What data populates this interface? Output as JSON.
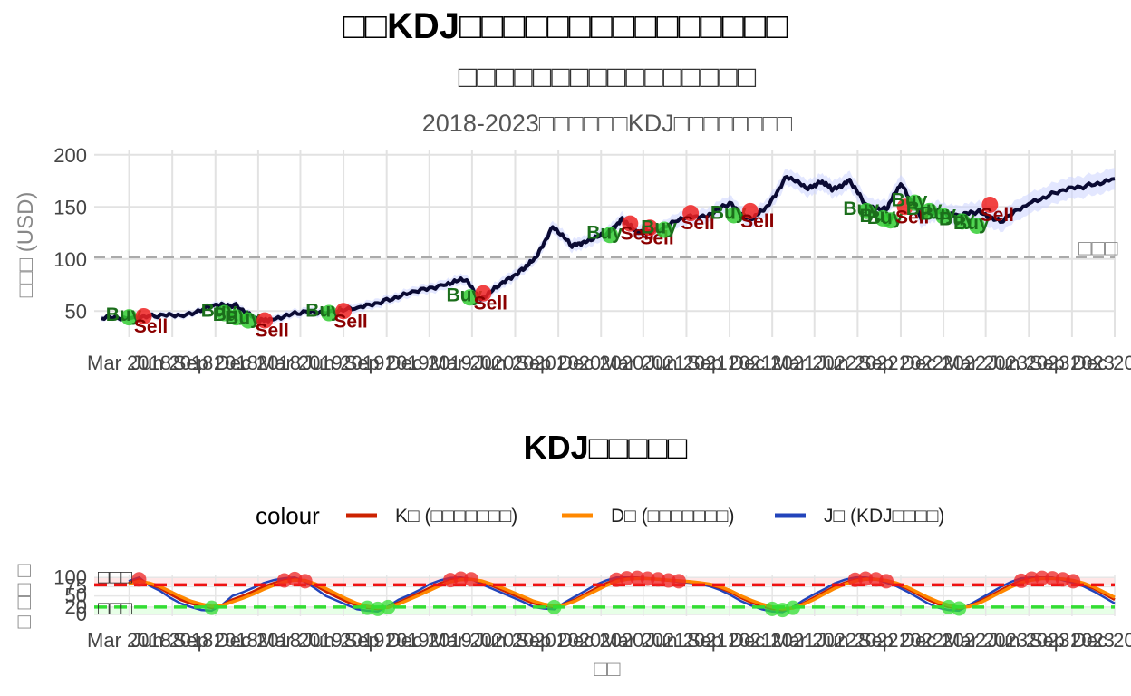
{
  "titles": {
    "main": "□□KDJ□□□□□□□□□□□□□□□",
    "subtitle": "□□□□□□□□□□□□□□□□",
    "caption": "2018-2023□□□□□□KDJ□□□□□□□□"
  },
  "price_panel": {
    "ylabel": "□□□ (USD)",
    "ref_line_label": "□□□",
    "colors": {
      "price": "#0a0a33",
      "band": "#ccd4ff",
      "ref": "#aaaaaa",
      "buy": "#1b6e1b",
      "sell": "#8b0000",
      "buy_point": "#33cc33",
      "sell_point": "#ee2222"
    }
  },
  "kdj_panel": {
    "title": "KDJ□□□□□",
    "xlabel": "□□",
    "ylabel": "□ □□ □",
    "overbought_label": "□□□",
    "oversold_label": "□□□",
    "legend": {
      "title": "colour",
      "items": [
        {
          "label": "K□ (□□□□□□□)",
          "color": "#cc2200"
        },
        {
          "label": "D□ (□□□□□□□)",
          "color": "#ff8800"
        },
        {
          "label": "J□ (KDJ□□□□)",
          "color": "#2244bb"
        }
      ]
    }
  },
  "chart_data": [
    {
      "type": "line",
      "panel": "price",
      "x_tick_labels": [
        "Mar 2018",
        "Jun 2018",
        "Sep 2018",
        "Dec 2018",
        "Mar 2019",
        "Jun 2019",
        "Sep 2019",
        "Dec 2019",
        "Mar 2020",
        "Jun 2020",
        "Sep 2020",
        "Dec 2020",
        "Mar 2021",
        "Jun 2021",
        "Sep 2021",
        "Dec 2021",
        "Mar 2022",
        "Jun 2022",
        "Sep 2022",
        "Dec 2022",
        "Mar 2023",
        "Jun 2023",
        "Sep 2023",
        "Dec 2023"
      ],
      "y_ticks": [
        50,
        100,
        150,
        200
      ],
      "ylim": [
        25,
        205
      ],
      "reference_line": 102,
      "series": [
        {
          "x": [
            "2018-01-01",
            "2018-03-01",
            "2018-05-01",
            "2018-07-01",
            "2018-09-01",
            "2018-10-15",
            "2018-12-01",
            "2019-01-01",
            "2019-03-01",
            "2019-05-01",
            "2019-07-01",
            "2019-09-01",
            "2019-11-01",
            "2020-01-01",
            "2020-02-15",
            "2020-03-20",
            "2020-05-01",
            "2020-06-15",
            "2020-07-15",
            "2020-08-20",
            "2020-09-30",
            "2020-11-01",
            "2020-12-15",
            "2021-01-15",
            "2021-02-15",
            "2021-04-01",
            "2021-06-01",
            "2021-07-15",
            "2021-09-01",
            "2021-10-15",
            "2021-11-20",
            "2022-01-01",
            "2022-02-15",
            "2022-03-15",
            "2022-04-10",
            "2022-05-15",
            "2022-06-20",
            "2022-08-01",
            "2022-09-01",
            "2022-10-15",
            "2022-11-15",
            "2023-01-01",
            "2023-02-15",
            "2023-04-01",
            "2023-06-01",
            "2023-08-01",
            "2023-10-01",
            "2023-12-01"
          ],
          "values": [
            43,
            44,
            45,
            47,
            55,
            56,
            40,
            43,
            48,
            50,
            52,
            61,
            68,
            76,
            80,
            62,
            75,
            90,
            100,
            132,
            112,
            118,
            124,
            139,
            125,
            128,
            140,
            142,
            153,
            138,
            149,
            180,
            167,
            175,
            166,
            176,
            150,
            148,
            172,
            140,
            146,
            142,
            145,
            136,
            153,
            165,
            170,
            177
          ]
        }
      ],
      "signals": [
        {
          "type": "Buy",
          "x": "2018-03-01",
          "y": 44
        },
        {
          "type": "Sell",
          "x": "2018-04-01",
          "y": 45
        },
        {
          "type": "Buy",
          "x": "2018-09-20",
          "y": 48
        },
        {
          "type": "Buy",
          "x": "2018-10-15",
          "y": 44
        },
        {
          "type": "Buy",
          "x": "2018-11-10",
          "y": 41
        },
        {
          "type": "Sell",
          "x": "2018-12-15",
          "y": 41
        },
        {
          "type": "Buy",
          "x": "2019-05-01",
          "y": 48
        },
        {
          "type": "Sell",
          "x": "2019-06-01",
          "y": 50
        },
        {
          "type": "Buy",
          "x": "2020-02-25",
          "y": 63
        },
        {
          "type": "Sell",
          "x": "2020-03-25",
          "y": 67
        },
        {
          "type": "Buy",
          "x": "2020-12-20",
          "y": 123
        },
        {
          "type": "Sell",
          "x": "2021-02-01",
          "y": 134
        },
        {
          "type": "Sell",
          "x": "2021-03-15",
          "y": 130
        },
        {
          "type": "Buy",
          "x": "2021-04-15",
          "y": 128
        },
        {
          "type": "Sell",
          "x": "2021-06-10",
          "y": 144
        },
        {
          "type": "Buy",
          "x": "2021-09-10",
          "y": 142
        },
        {
          "type": "Sell",
          "x": "2021-10-15",
          "y": 146
        },
        {
          "type": "Buy",
          "x": "2022-06-20",
          "y": 146
        },
        {
          "type": "Buy",
          "x": "2022-07-25",
          "y": 139
        },
        {
          "type": "Buy",
          "x": "2022-08-10",
          "y": 137
        },
        {
          "type": "Sell",
          "x": "2022-09-10",
          "y": 150
        },
        {
          "type": "Buy",
          "x": "2022-10-01",
          "y": 154
        },
        {
          "type": "Buy",
          "x": "2022-11-01",
          "y": 146
        },
        {
          "type": "Buy",
          "x": "2022-12-01",
          "y": 141
        },
        {
          "type": "Buy",
          "x": "2023-01-10",
          "y": 136
        },
        {
          "type": "Buy",
          "x": "2023-02-10",
          "y": 132
        },
        {
          "type": "Sell",
          "x": "2023-03-10",
          "y": 152
        }
      ]
    },
    {
      "type": "line",
      "panel": "kdj",
      "x_tick_labels": [
        "Mar 2018",
        "Jun 2018",
        "Sep 2018",
        "Dec 2018",
        "Mar 2019",
        "Jun 2019",
        "Sep 2019",
        "Dec 2019",
        "Mar 2020",
        "Jun 2020",
        "Sep 2020",
        "Dec 2020",
        "Mar 2021",
        "Jun 2021",
        "Sep 2021",
        "Dec 2021",
        "Mar 2022",
        "Jun 2022",
        "Sep 2022",
        "Dec 2022",
        "Mar 2023",
        "Jun 2023",
        "Sep 2023",
        "Dec 2023"
      ],
      "y_ticks": [
        0,
        20,
        50,
        75,
        100
      ],
      "ylim": [
        -5,
        108
      ],
      "overbought": 80,
      "oversold": 20,
      "series": [
        {
          "name": "K□ (□□□□□□□)",
          "period_days": 20,
          "values": [
            85,
            95,
            82,
            72,
            55,
            40,
            30,
            22,
            18,
            25,
            40,
            50,
            62,
            75,
            85,
            92,
            96,
            90,
            78,
            62,
            48,
            35,
            24,
            18,
            15,
            20,
            32,
            45,
            58,
            72,
            84,
            93,
            97,
            95,
            88,
            78,
            66,
            54,
            42,
            30,
            24,
            20,
            28,
            40,
            55,
            70,
            84,
            94,
            98,
            99,
            97,
            95,
            92,
            90,
            88,
            85,
            80,
            72,
            60,
            45,
            32,
            22,
            15,
            12,
            18,
            30,
            45,
            60,
            75,
            86,
            94,
            97,
            95,
            90,
            82,
            70,
            55,
            40,
            28,
            20,
            16,
            22,
            35,
            50,
            65,
            80,
            91,
            97,
            99,
            98,
            95,
            90,
            82,
            70,
            55,
            40
          ]
        },
        {
          "name": "D□ (□□□□□□□)",
          "period_days": 20,
          "values": [
            82,
            90,
            85,
            76,
            62,
            48,
            36,
            28,
            22,
            24,
            34,
            44,
            55,
            68,
            79,
            88,
            93,
            92,
            83,
            70,
            56,
            42,
            30,
            22,
            18,
            19,
            28,
            40,
            52,
            65,
            78,
            88,
            94,
            95,
            91,
            82,
            72,
            60,
            48,
            36,
            28,
            23,
            26,
            36,
            50,
            64,
            78,
            89,
            95,
            97,
            97,
            95,
            93,
            91,
            89,
            86,
            82,
            75,
            64,
            50,
            38,
            28,
            20,
            15,
            17,
            27,
            40,
            55,
            70,
            82,
            90,
            95,
            95,
            92,
            85,
            74,
            60,
            46,
            34,
            25,
            19,
            21,
            31,
            45,
            60,
            74,
            86,
            93,
            97,
            97,
            96,
            92,
            85,
            74,
            60,
            46
          ]
        },
        {
          "name": "J□ (KDJ□□□□)",
          "period_days": 20,
          "values": [
            90,
            100,
            78,
            64,
            45,
            30,
            20,
            12,
            10,
            26,
            50,
            60,
            72,
            85,
            93,
            98,
            100,
            88,
            70,
            50,
            38,
            26,
            14,
            10,
            8,
            22,
            40,
            52,
            66,
            82,
            92,
            99,
            100,
            96,
            82,
            70,
            58,
            46,
            34,
            20,
            16,
            14,
            32,
            48,
            64,
            80,
            92,
            100,
            100,
            100,
            98,
            96,
            92,
            88,
            86,
            83,
            76,
            66,
            52,
            36,
            24,
            14,
            8,
            6,
            20,
            38,
            54,
            68,
            84,
            94,
            100,
            100,
            96,
            86,
            76,
            62,
            46,
            30,
            18,
            12,
            10,
            26,
            42,
            58,
            74,
            88,
            98,
            100,
            100,
            100,
            93,
            86,
            76,
            62,
            46,
            30
          ]
        }
      ]
    }
  ]
}
